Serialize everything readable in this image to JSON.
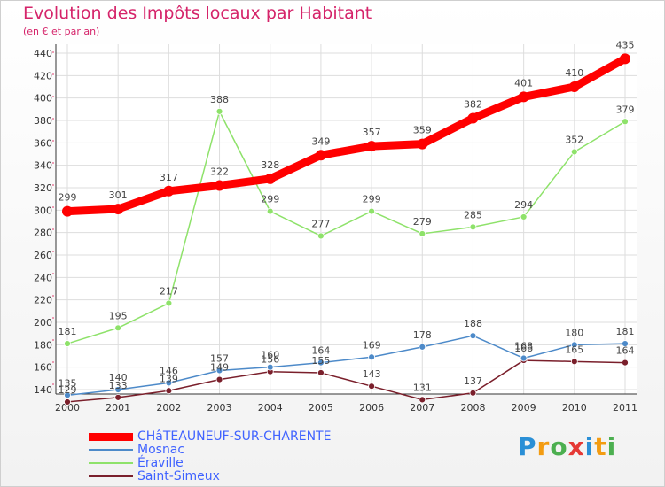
{
  "title": "Evolution des Impôts locaux par Habitant",
  "subtitle": "(en € et par an)",
  "chart_data": {
    "type": "line",
    "title": "Evolution des Impôts locaux par Habitant",
    "subtitle": "(en € et par an)",
    "xlabel": "",
    "ylabel": "",
    "x": [
      "2000",
      "2001",
      "2002",
      "2003",
      "2004",
      "2005",
      "2006",
      "2007",
      "2008",
      "2009",
      "2010",
      "2011"
    ],
    "ylim": [
      120,
      440
    ],
    "yticks": [
      140,
      160,
      180,
      200,
      220,
      240,
      260,
      280,
      300,
      320,
      340,
      360,
      380,
      400,
      420,
      440
    ],
    "grid": true,
    "legend_position": "bottom-left",
    "series": [
      {
        "name": "CHâTEAUNEUF-SUR-CHARENTE",
        "color": "#ff0000",
        "values": [
          299,
          301,
          317,
          322,
          328,
          349,
          357,
          359,
          382,
          401,
          410,
          435
        ],
        "labels": [
          "299",
          "301",
          "317",
          "322",
          "328",
          "349",
          "357",
          "359",
          "382",
          "401",
          "410",
          "435"
        ]
      },
      {
        "name": "Mosnac",
        "color": "#4d8ac9",
        "values": [
          135,
          140,
          146,
          157,
          160,
          164,
          169,
          178,
          188,
          168,
          180,
          181
        ],
        "labels": [
          "135",
          "140",
          "146",
          "157",
          "160",
          "164",
          "169",
          "178",
          "188",
          "168",
          "180",
          "181"
        ]
      },
      {
        "name": "Éraville",
        "color": "#8ee26a",
        "values": [
          181,
          195,
          217,
          388,
          299,
          277,
          299,
          279,
          285,
          294,
          352,
          379
        ],
        "labels": [
          "181",
          "195",
          "217",
          "388",
          "299",
          "277",
          "299",
          "279",
          "285",
          "294",
          "352",
          "379"
        ]
      },
      {
        "name": "Saint-Simeux",
        "color": "#7a1f2b",
        "values": [
          129,
          133,
          139,
          149,
          156,
          155,
          143,
          131,
          137,
          166,
          165,
          164
        ],
        "labels": [
          "129",
          "133",
          "139",
          "149",
          "156",
          "155",
          "143",
          "131",
          "137",
          "166",
          "165",
          "164"
        ]
      }
    ]
  },
  "legend": [
    {
      "label": "CHâTEAUNEUF-SUR-CHARENTE",
      "color": "#ff0000"
    },
    {
      "label": "Mosnac",
      "color": "#4d8ac9"
    },
    {
      "label": "Éraville",
      "color": "#8ee26a"
    },
    {
      "label": "Saint-Simeux",
      "color": "#7a1f2b"
    }
  ],
  "logo": {
    "text": "Proxiti",
    "letters": [
      "P",
      "r",
      "o",
      "x",
      "i",
      "t",
      "i"
    ],
    "colors": [
      "#2a8fd6",
      "#f39c12",
      "#4caf50",
      "#e53935",
      "#2a8fd6",
      "#f39c12",
      "#4caf50"
    ]
  }
}
